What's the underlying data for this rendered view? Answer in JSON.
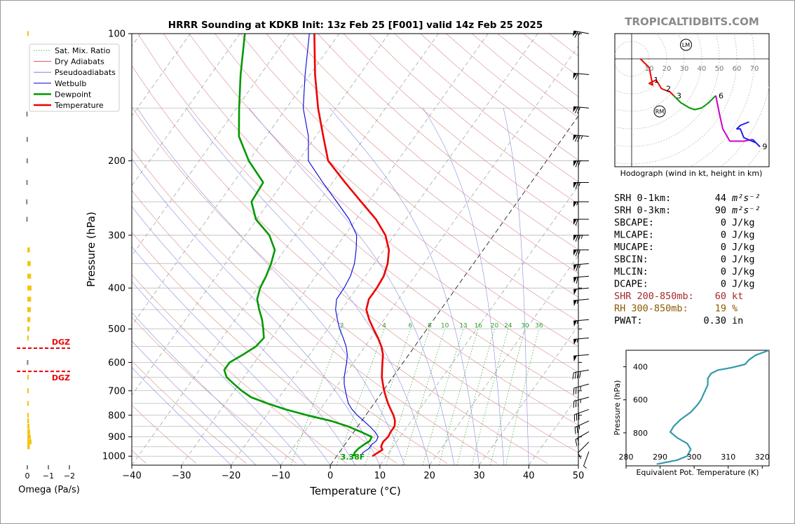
{
  "site": "TROPICALTIDBITS.COM",
  "chart_data": [
    {
      "type": "line",
      "title": "HRRR Sounding at KDKB Init: 13z Feb 25 [F001] valid 14z Feb 25 2025",
      "xlabel": "Temperature (°C)",
      "ylabel": "Pressure (hPa)",
      "xlim": [
        -40,
        50
      ],
      "ylim": [
        1050,
        100
      ],
      "y_scale": "log",
      "x_ticks": [
        "−40",
        "−30",
        "−20",
        "−10",
        "0",
        "10",
        "20",
        "30",
        "40",
        "50"
      ],
      "y_ticks": [
        "100",
        "200",
        "300",
        "400",
        "500",
        "600",
        "700",
        "800",
        "900",
        "1000"
      ],
      "legend": {
        "placement": "top-left",
        "items": [
          {
            "label": "Sat. Mix. Ratio",
            "color": "#2ca02c",
            "style": "dotted"
          },
          {
            "label": "Dry Adiabats",
            "color": "#d62728",
            "style": "thin"
          },
          {
            "label": "Pseudoadiabats",
            "color": "#6a6ad0",
            "style": "thin"
          },
          {
            "label": "Wetbulb",
            "color": "#0000dd",
            "style": "solid"
          },
          {
            "label": "Dewpoint",
            "color": "#009900",
            "style": "thick"
          },
          {
            "label": "Temperature",
            "color": "#ee0000",
            "style": "thick"
          }
        ]
      },
      "mixing_ratio_labels": [
        "2",
        "4",
        "6",
        "8",
        "10",
        "13",
        "16",
        "20",
        "24",
        "30",
        "36"
      ],
      "surface_dewpoint_label": "3.38F",
      "series": [
        {
          "name": "Temperature",
          "color": "#ee0000",
          "points": [
            [
              7.2,
              1000
            ],
            [
              8.3,
              965
            ],
            [
              7.6,
              950
            ],
            [
              7.3,
              925
            ],
            [
              7.6,
              900
            ],
            [
              7.4,
              875
            ],
            [
              7.4,
              850
            ],
            [
              6.7,
              825
            ],
            [
              5.6,
              800
            ],
            [
              4.2,
              775
            ],
            [
              2.8,
              750
            ],
            [
              1.5,
              725
            ],
            [
              0.2,
              700
            ],
            [
              -1.0,
              675
            ],
            [
              -2.2,
              650
            ],
            [
              -3.2,
              625
            ],
            [
              -4.2,
              600
            ],
            [
              -5.2,
              575
            ],
            [
              -6.7,
              550
            ],
            [
              -8.6,
              525
            ],
            [
              -10.8,
              500
            ],
            [
              -13.0,
              475
            ],
            [
              -15.0,
              450
            ],
            [
              -16.0,
              425
            ],
            [
              -16.0,
              400
            ],
            [
              -16.3,
              375
            ],
            [
              -17.3,
              350
            ],
            [
              -19.0,
              325
            ],
            [
              -21.8,
              300
            ],
            [
              -26.0,
              275
            ],
            [
              -31.5,
              250
            ],
            [
              -37.5,
              225
            ],
            [
              -44.0,
              200
            ],
            [
              -48.5,
              175
            ],
            [
              -53.6,
              150
            ],
            [
              -59.0,
              125
            ],
            [
              -65.0,
              100
            ]
          ]
        },
        {
          "name": "Dewpoint",
          "color": "#009900",
          "points": [
            [
              3.4,
              1000
            ],
            [
              3.1,
              980
            ],
            [
              3.3,
              960
            ],
            [
              3.8,
              940
            ],
            [
              4.5,
              920
            ],
            [
              4.3,
              900
            ],
            [
              1.3,
              875
            ],
            [
              -2.0,
              850
            ],
            [
              -6.2,
              825
            ],
            [
              -11.8,
              800
            ],
            [
              -17.0,
              775
            ],
            [
              -21.5,
              750
            ],
            [
              -25.7,
              725
            ],
            [
              -28.5,
              700
            ],
            [
              -31.0,
              675
            ],
            [
              -33.5,
              650
            ],
            [
              -35.0,
              625
            ],
            [
              -35.0,
              600
            ],
            [
              -33.4,
              575
            ],
            [
              -32.0,
              550
            ],
            [
              -31.6,
              525
            ],
            [
              -33.0,
              500
            ],
            [
              -34.6,
              475
            ],
            [
              -36.6,
              450
            ],
            [
              -38.5,
              425
            ],
            [
              -39.5,
              400
            ],
            [
              -40.0,
              375
            ],
            [
              -40.8,
              350
            ],
            [
              -42.0,
              325
            ],
            [
              -45.2,
              300
            ],
            [
              -50.2,
              275
            ],
            [
              -53.6,
              250
            ],
            [
              -54.0,
              225
            ],
            [
              -60.0,
              200
            ],
            [
              -65.5,
              175
            ],
            [
              -69.5,
              150
            ],
            [
              -74.0,
              125
            ],
            [
              -79.0,
              100
            ]
          ]
        },
        {
          "name": "Wetbulb",
          "color": "#0000dd",
          "points": [
            [
              4.8,
              1000
            ],
            [
              4.8,
              980
            ],
            [
              5.4,
              960
            ],
            [
              5.4,
              940
            ],
            [
              5.8,
              920
            ],
            [
              5.6,
              900
            ],
            [
              4.2,
              875
            ],
            [
              2.4,
              850
            ],
            [
              0.4,
              825
            ],
            [
              -1.7,
              800
            ],
            [
              -3.6,
              775
            ],
            [
              -5.2,
              750
            ],
            [
              -6.4,
              725
            ],
            [
              -7.6,
              700
            ],
            [
              -8.8,
              675
            ],
            [
              -9.8,
              650
            ],
            [
              -10.6,
              625
            ],
            [
              -11.4,
              600
            ],
            [
              -12.4,
              575
            ],
            [
              -13.8,
              550
            ],
            [
              -15.6,
              525
            ],
            [
              -17.6,
              500
            ],
            [
              -19.4,
              475
            ],
            [
              -21.2,
              450
            ],
            [
              -22.5,
              425
            ],
            [
              -22.6,
              400
            ],
            [
              -23.0,
              375
            ],
            [
              -24.0,
              350
            ],
            [
              -25.6,
              325
            ],
            [
              -27.6,
              300
            ],
            [
              -31.4,
              275
            ],
            [
              -36.4,
              250
            ],
            [
              -42.0,
              225
            ],
            [
              -48.0,
              200
            ],
            [
              -51.5,
              175
            ],
            [
              -56.6,
              150
            ],
            [
              -61.0,
              125
            ],
            [
              -66.0,
              100
            ]
          ]
        }
      ]
    },
    {
      "type": "line",
      "title": "Hodograph (wind in kt, height in km)",
      "ring_labels": [
        "10",
        "20",
        "30",
        "40",
        "50",
        "60",
        "70"
      ],
      "markers": [
        "LM",
        "RM"
      ],
      "height_labels": [
        "1",
        "2",
        "3",
        "6",
        "9"
      ],
      "segments": [
        {
          "km": "0-3",
          "color": "#ee0000",
          "points": [
            [
              5,
              0
            ],
            [
              10,
              -5
            ],
            [
              12,
              -15
            ],
            [
              10,
              -14
            ],
            [
              14,
              -12
            ],
            [
              17,
              -17
            ],
            [
              22,
              -19
            ],
            [
              24,
              -21
            ]
          ]
        },
        {
          "km": "3-6",
          "color": "#009900",
          "points": [
            [
              24,
              -21
            ],
            [
              28,
              -25
            ],
            [
              33,
              -28
            ],
            [
              36,
              -29
            ],
            [
              40,
              -28
            ],
            [
              44,
              -25
            ],
            [
              48,
              -21
            ]
          ]
        },
        {
          "km": "6-9",
          "color": "#cc00cc",
          "points": [
            [
              48,
              -21
            ],
            [
              50,
              -31
            ],
            [
              52,
              -40
            ],
            [
              56,
              -47
            ],
            [
              64,
              -47
            ],
            [
              69,
              -46
            ]
          ]
        },
        {
          "km": "9-12",
          "color": "#2222ee",
          "points": [
            [
              69,
              -46
            ],
            [
              73,
              -50
            ],
            [
              71,
              -48
            ],
            [
              64,
              -45
            ],
            [
              62,
              -40
            ],
            [
              60,
              -40
            ],
            [
              62,
              -38
            ],
            [
              67,
              -36
            ]
          ]
        }
      ]
    },
    {
      "type": "line",
      "xlabel": "Equivalent Pot. Temperature (K)",
      "ylabel": "Pressure (hPa)",
      "xlim": [
        280,
        322
      ],
      "ylim": [
        1000,
        300
      ],
      "x_ticks": [
        "280",
        "290",
        "300",
        "310",
        "320"
      ],
      "y_ticks": [
        "400",
        "600",
        "800"
      ],
      "series": [
        {
          "name": "theta_e",
          "color": "#3399aa",
          "points": [
            [
              289,
              990
            ],
            [
              295,
              965
            ],
            [
              298,
              940
            ],
            [
              299,
              900
            ],
            [
              298,
              865
            ],
            [
              295,
              830
            ],
            [
              293,
              795
            ],
            [
              294,
              760
            ],
            [
              296,
              720
            ],
            [
              299,
              675
            ],
            [
              301,
              630
            ],
            [
              302,
              600
            ],
            [
              303,
              555
            ],
            [
              304,
              510
            ],
            [
              304,
              470
            ],
            [
              305,
              440
            ],
            [
              307,
              420
            ],
            [
              311,
              405
            ],
            [
              315,
              385
            ],
            [
              316,
              360
            ],
            [
              318,
              330
            ],
            [
              322,
              300
            ]
          ]
        }
      ]
    },
    {
      "type": "bar",
      "xlabel": "Omega (Pa/s)",
      "x_ticks": [
        "0",
        "−1",
        "−2"
      ],
      "dgz_label": "DGZ",
      "dgz_pressures": [
        555,
        630
      ],
      "bars": [
        {
          "p": 100,
          "v": -0.05,
          "color": "#f2c511"
        },
        {
          "p": 155,
          "v": 0.05,
          "color": "#808080"
        },
        {
          "p": 178,
          "v": 0.04,
          "color": "#808080"
        },
        {
          "p": 200,
          "v": 0.04,
          "color": "#808080"
        },
        {
          "p": 225,
          "v": 0.05,
          "color": "#808080"
        },
        {
          "p": 250,
          "v": 0.06,
          "color": "#808080"
        },
        {
          "p": 275,
          "v": 0.05,
          "color": "#808080"
        },
        {
          "p": 325,
          "v": -0.12,
          "color": "#f2c511"
        },
        {
          "p": 350,
          "v": -0.16,
          "color": "#f2c511"
        },
        {
          "p": 375,
          "v": -0.18,
          "color": "#f2c511"
        },
        {
          "p": 400,
          "v": -0.2,
          "color": "#f2c511"
        },
        {
          "p": 425,
          "v": -0.18,
          "color": "#f2c511"
        },
        {
          "p": 450,
          "v": -0.17,
          "color": "#f2c511"
        },
        {
          "p": 475,
          "v": -0.14,
          "color": "#f2c511"
        },
        {
          "p": 500,
          "v": -0.1,
          "color": "#f2c511"
        },
        {
          "p": 525,
          "v": -0.05,
          "color": "#f2c511"
        },
        {
          "p": 600,
          "v": 0.02,
          "color": "#808080"
        },
        {
          "p": 650,
          "v": -0.02,
          "color": "#f2c511"
        },
        {
          "p": 700,
          "v": -0.02,
          "color": "#f2c511"
        },
        {
          "p": 750,
          "v": -0.03,
          "color": "#f2c511"
        },
        {
          "p": 800,
          "v": -0.06,
          "color": "#f2c511"
        },
        {
          "p": 825,
          "v": -0.08,
          "color": "#f2c511"
        },
        {
          "p": 850,
          "v": -0.1,
          "color": "#f2c511"
        },
        {
          "p": 875,
          "v": -0.13,
          "color": "#f2c511"
        },
        {
          "p": 900,
          "v": -0.16,
          "color": "#f2c511"
        },
        {
          "p": 925,
          "v": -0.2,
          "color": "#f2c511"
        },
        {
          "p": 950,
          "v": -0.12,
          "color": "#f2c511"
        }
      ]
    }
  ],
  "stats": [
    {
      "label": "SRH 0-1km:",
      "value": "44",
      "unit": "m²s⁻²",
      "color": "#000000"
    },
    {
      "label": "SRH 0-3km:",
      "value": "90",
      "unit": "m²s⁻²",
      "color": "#000000"
    },
    {
      "label": "SBCAPE:",
      "value": "0",
      "unit": "J/kg",
      "color": "#000000"
    },
    {
      "label": "MLCAPE:",
      "value": "0",
      "unit": "J/kg",
      "color": "#000000"
    },
    {
      "label": "MUCAPE:",
      "value": "0",
      "unit": "J/kg",
      "color": "#000000"
    },
    {
      "label": "SBCIN:",
      "value": "0",
      "unit": "J/kg",
      "color": "#000000"
    },
    {
      "label": "MLCIN:",
      "value": "0",
      "unit": "J/kg",
      "color": "#000000"
    },
    {
      "label": "DCAPE:",
      "value": "0",
      "unit": "J/kg",
      "color": "#000000"
    },
    {
      "label": "SHR 200-850mb:",
      "value": "60",
      "unit": "kt",
      "color": "#a52a2a"
    },
    {
      "label": "RH 300-850mb:",
      "value": "19",
      "unit": "%",
      "color": "#8b5a00"
    },
    {
      "label": "PWAT:",
      "value": "0.30",
      "unit": "in",
      "color": "#000000"
    }
  ],
  "wind_barbs": [
    {
      "p": 100,
      "dir": 280,
      "kt": 65
    },
    {
      "p": 125,
      "dir": 275,
      "kt": 60
    },
    {
      "p": 150,
      "dir": 275,
      "kt": 70
    },
    {
      "p": 175,
      "dir": 275,
      "kt": 75
    },
    {
      "p": 200,
      "dir": 270,
      "kt": 70
    },
    {
      "p": 225,
      "dir": 270,
      "kt": 65
    },
    {
      "p": 250,
      "dir": 270,
      "kt": 55
    },
    {
      "p": 275,
      "dir": 270,
      "kt": 60
    },
    {
      "p": 300,
      "dir": 270,
      "kt": 75
    },
    {
      "p": 325,
      "dir": 270,
      "kt": 70
    },
    {
      "p": 350,
      "dir": 265,
      "kt": 65
    },
    {
      "p": 375,
      "dir": 265,
      "kt": 60
    },
    {
      "p": 400,
      "dir": 265,
      "kt": 50
    },
    {
      "p": 425,
      "dir": 265,
      "kt": 55
    },
    {
      "p": 475,
      "dir": 265,
      "kt": 55
    },
    {
      "p": 525,
      "dir": 265,
      "kt": 55
    },
    {
      "p": 575,
      "dir": 265,
      "kt": 50
    },
    {
      "p": 625,
      "dir": 260,
      "kt": 40
    },
    {
      "p": 675,
      "dir": 255,
      "kt": 35
    },
    {
      "p": 725,
      "dir": 255,
      "kt": 35
    },
    {
      "p": 775,
      "dir": 250,
      "kt": 30
    },
    {
      "p": 825,
      "dir": 245,
      "kt": 25
    },
    {
      "p": 875,
      "dir": 240,
      "kt": 20
    },
    {
      "p": 925,
      "dir": 225,
      "kt": 10
    },
    {
      "p": 975,
      "dir": 200,
      "kt": 5
    }
  ]
}
